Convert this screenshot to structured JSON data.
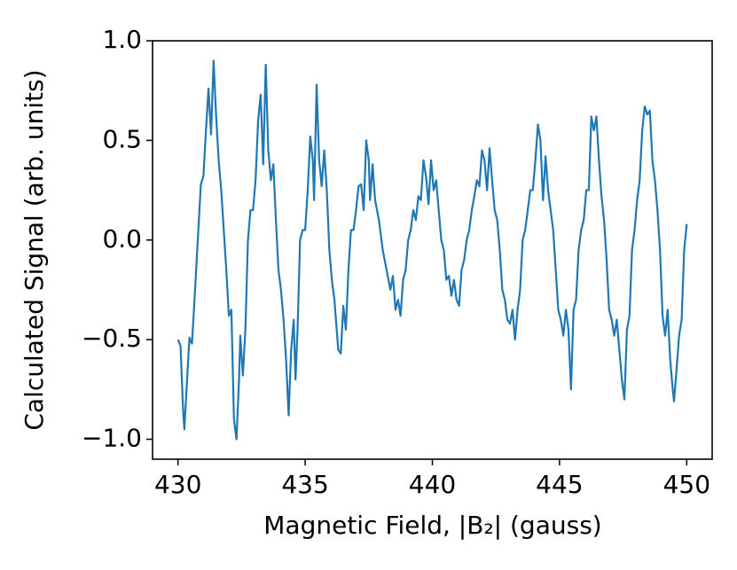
{
  "chart_data": {
    "type": "line",
    "x_label": "Magnetic Field, |B₂| (gauss)",
    "y_label": "Calculated Signal (arb. units)",
    "color": "#1f77b4",
    "xlim": [
      429,
      451
    ],
    "ylim": [
      -1.1,
      1.0
    ],
    "xticks": [
      430,
      435,
      440,
      445,
      450
    ],
    "yticks": [
      {
        "value": -1.0,
        "label": "−1.0"
      },
      {
        "value": -0.5,
        "label": "−0.5"
      },
      {
        "value": 0.0,
        "label": "0.0"
      },
      {
        "value": 0.5,
        "label": "0.5"
      },
      {
        "value": 1.0,
        "label": "1.0"
      }
    ],
    "x": [
      430.0,
      430.1,
      430.2,
      430.25,
      430.35,
      430.45,
      430.55,
      430.65,
      430.8,
      430.9,
      431.0,
      431.1,
      431.2,
      431.3,
      431.4,
      431.5,
      431.6,
      431.7,
      431.8,
      431.9,
      432.0,
      432.1,
      432.2,
      432.3,
      432.4,
      432.45,
      432.55,
      432.65,
      432.75,
      432.85,
      432.95,
      433.05,
      433.15,
      433.25,
      433.35,
      433.45,
      433.55,
      433.65,
      433.75,
      433.85,
      433.95,
      434.05,
      434.15,
      434.25,
      434.35,
      434.45,
      434.55,
      434.62,
      434.7,
      434.8,
      434.9,
      435.0,
      435.1,
      435.2,
      435.3,
      435.35,
      435.45,
      435.55,
      435.65,
      435.75,
      435.85,
      435.95,
      436.05,
      436.15,
      436.3,
      436.4,
      436.5,
      436.6,
      436.7,
      436.8,
      436.9,
      437.0,
      437.1,
      437.2,
      437.3,
      437.4,
      437.5,
      437.55,
      437.65,
      437.75,
      437.9,
      438.05,
      438.2,
      438.35,
      438.45,
      438.55,
      438.65,
      438.75,
      438.85,
      438.95,
      439.05,
      439.15,
      439.25,
      439.35,
      439.45,
      439.55,
      439.65,
      439.75,
      439.85,
      439.95,
      440.05,
      440.15,
      440.25,
      440.35,
      440.45,
      440.55,
      440.65,
      440.75,
      440.85,
      440.95,
      441.05,
      441.15,
      441.25,
      441.35,
      441.45,
      441.55,
      441.65,
      441.75,
      441.85,
      441.95,
      442.05,
      442.15,
      442.25,
      442.35,
      442.45,
      442.55,
      442.65,
      442.75,
      442.85,
      442.95,
      443.05,
      443.15,
      443.25,
      443.35,
      443.45,
      443.55,
      443.65,
      443.75,
      443.85,
      443.95,
      444.05,
      444.15,
      444.25,
      444.35,
      444.45,
      444.55,
      444.65,
      444.75,
      444.85,
      444.95,
      445.05,
      445.15,
      445.25,
      445.35,
      445.45,
      445.55,
      445.65,
      445.75,
      445.85,
      445.95,
      446.05,
      446.15,
      446.25,
      446.35,
      446.45,
      446.55,
      446.65,
      446.75,
      446.85,
      446.95,
      447.05,
      447.15,
      447.25,
      447.35,
      447.45,
      447.55,
      447.65,
      447.75,
      447.85,
      447.95,
      448.05,
      448.15,
      448.25,
      448.35,
      448.45,
      448.55,
      448.65,
      448.75,
      448.85,
      448.95,
      449.05,
      449.15,
      449.25,
      449.35,
      449.45,
      449.5,
      449.6,
      449.7,
      449.8,
      449.9,
      450.0
    ],
    "values": [
      -0.5,
      -0.53,
      -0.85,
      -0.95,
      -0.72,
      -0.49,
      -0.52,
      -0.3,
      0.05,
      0.28,
      0.32,
      0.55,
      0.76,
      0.53,
      0.9,
      0.62,
      0.4,
      0.25,
      0.05,
      -0.15,
      -0.38,
      -0.35,
      -0.9,
      -1.0,
      -0.7,
      -0.48,
      -0.68,
      -0.45,
      0.0,
      0.15,
      0.15,
      0.3,
      0.6,
      0.73,
      0.38,
      0.88,
      0.45,
      0.3,
      0.38,
      0.1,
      -0.15,
      -0.25,
      -0.4,
      -0.6,
      -0.88,
      -0.55,
      -0.4,
      -0.7,
      -0.45,
      0.0,
      0.05,
      0.05,
      0.25,
      0.52,
      0.4,
      0.2,
      0.78,
      0.4,
      0.27,
      0.45,
      0.25,
      -0.05,
      -0.2,
      -0.3,
      -0.55,
      -0.57,
      -0.33,
      -0.45,
      -0.15,
      0.05,
      0.05,
      0.15,
      0.27,
      0.28,
      0.15,
      0.5,
      0.4,
      0.2,
      0.38,
      0.2,
      0.1,
      -0.05,
      -0.15,
      -0.25,
      -0.18,
      -0.35,
      -0.3,
      -0.38,
      -0.2,
      -0.15,
      0.0,
      0.05,
      0.15,
      0.1,
      0.22,
      0.2,
      0.4,
      0.32,
      0.18,
      0.4,
      0.25,
      0.3,
      0.15,
      0.0,
      -0.05,
      -0.2,
      -0.18,
      -0.28,
      -0.2,
      -0.3,
      -0.33,
      -0.15,
      -0.1,
      0.0,
      0.05,
      0.15,
      0.22,
      0.3,
      0.27,
      0.45,
      0.4,
      0.25,
      0.46,
      0.3,
      0.15,
      0.1,
      -0.05,
      -0.25,
      -0.3,
      -0.4,
      -0.42,
      -0.35,
      -0.5,
      -0.35,
      -0.25,
      0.0,
      0.05,
      0.15,
      0.25,
      0.25,
      0.4,
      0.58,
      0.5,
      0.2,
      0.42,
      0.25,
      0.15,
      0.05,
      -0.15,
      -0.35,
      -0.4,
      -0.48,
      -0.35,
      -0.45,
      -0.75,
      -0.35,
      -0.3,
      -0.05,
      0.05,
      0.1,
      0.25,
      0.25,
      0.62,
      0.55,
      0.62,
      0.4,
      0.22,
      0.1,
      -0.1,
      -0.35,
      -0.4,
      -0.48,
      -0.4,
      -0.55,
      -0.7,
      -0.8,
      -0.45,
      -0.38,
      -0.05,
      0.05,
      0.2,
      0.3,
      0.55,
      0.67,
      0.63,
      0.65,
      0.4,
      0.3,
      0.15,
      -0.05,
      -0.38,
      -0.48,
      -0.35,
      -0.6,
      -0.75,
      -0.81,
      -0.65,
      -0.48,
      -0.4,
      -0.05,
      0.08
    ]
  }
}
